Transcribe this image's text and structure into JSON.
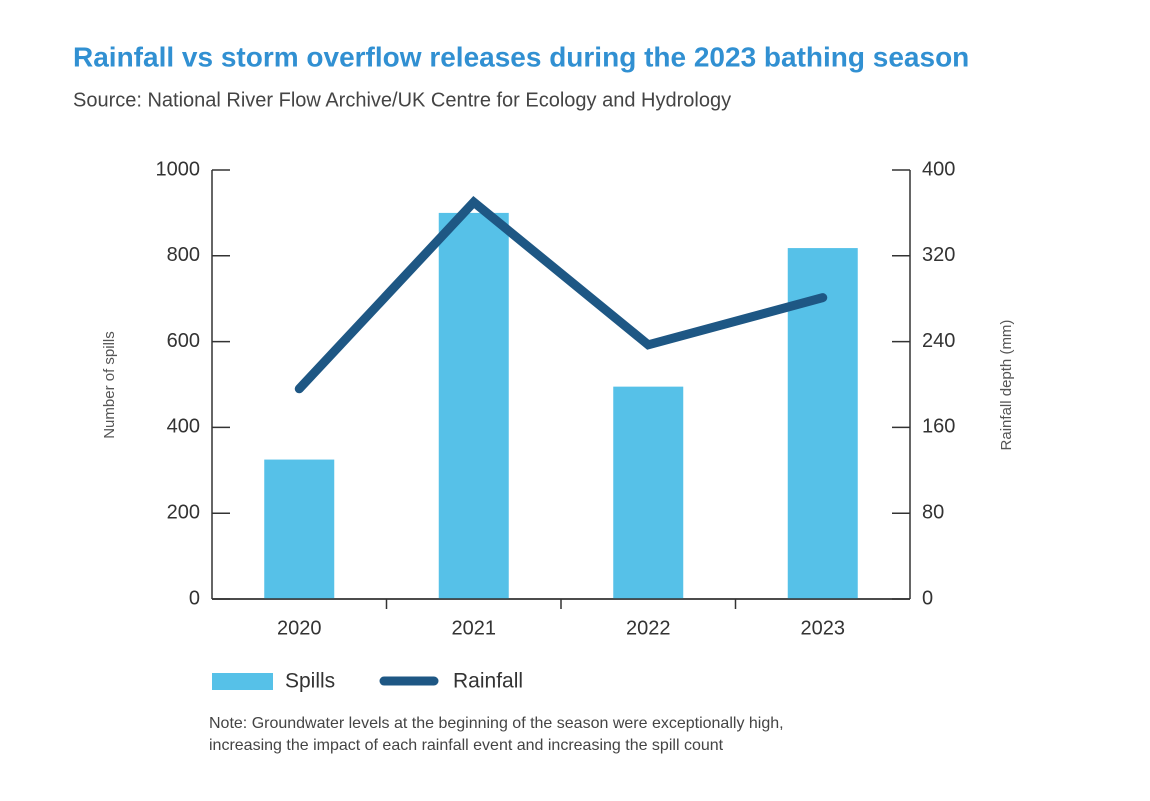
{
  "chart_data": {
    "type": "bar",
    "title": "Rainfall vs storm overflow releases during the 2023 bathing season",
    "subtitle": "Source: National River Flow Archive/UK Centre for Ecology and Hydrology",
    "y_label": "Number of spills",
    "y2_label": "Rainfall depth (mm)",
    "categories": [
      "2020",
      "2021",
      "2022",
      "2023"
    ],
    "series": [
      {
        "name": "Spills",
        "type": "bar",
        "color": "#56c1e8",
        "values": [
          325,
          900,
          495,
          818
        ]
      },
      {
        "name": "Rainfall",
        "type": "line",
        "axis": "y2",
        "color": "#1e5784",
        "values": [
          196,
          370,
          237,
          281
        ]
      }
    ],
    "ylim": [
      0,
      1000
    ],
    "yticks": [
      0,
      200,
      400,
      600,
      800,
      1000
    ],
    "y2lim": [
      0,
      400
    ],
    "y2ticks": [
      0,
      80,
      160,
      240,
      320,
      400
    ],
    "note": [
      "Note: Groundwater levels at the beginning of the season were exceptionally high,",
      "increasing the impact of each rainfall event and increasing the spill count"
    ]
  }
}
